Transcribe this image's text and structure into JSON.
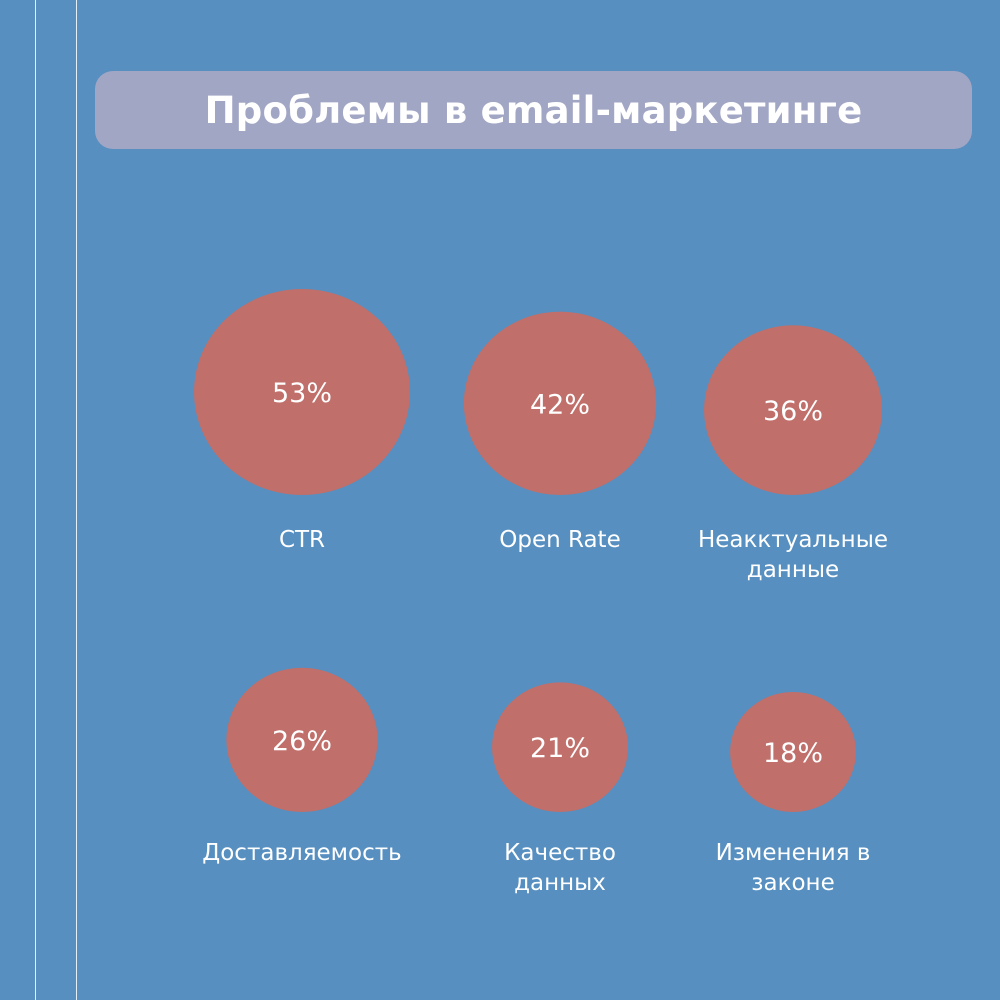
{
  "header": {
    "title": "Проблемы в email-маркетинге"
  },
  "colors": {
    "background": "#568fc0",
    "title_banner": "#a1a6c4",
    "bubble": "#c06f6a",
    "text": "#ffffff"
  },
  "chart_data": {
    "type": "bubble",
    "title": "Проблемы в email-маркетинге",
    "unit": "%",
    "items": [
      {
        "value": 53,
        "value_label": "53%",
        "label_lines": [
          "CTR"
        ]
      },
      {
        "value": 42,
        "value_label": "42%",
        "label_lines": [
          "Open Rate"
        ]
      },
      {
        "value": 36,
        "value_label": "36%",
        "label_lines": [
          "Неакктуальные",
          "данные"
        ]
      },
      {
        "value": 26,
        "value_label": "26%",
        "label_lines": [
          "Доставляемость"
        ]
      },
      {
        "value": 21,
        "value_label": "21%",
        "label_lines": [
          "Качество",
          "данных"
        ]
      },
      {
        "value": 18,
        "value_label": "18%",
        "label_lines": [
          "Изменения в",
          "законе"
        ]
      }
    ]
  }
}
